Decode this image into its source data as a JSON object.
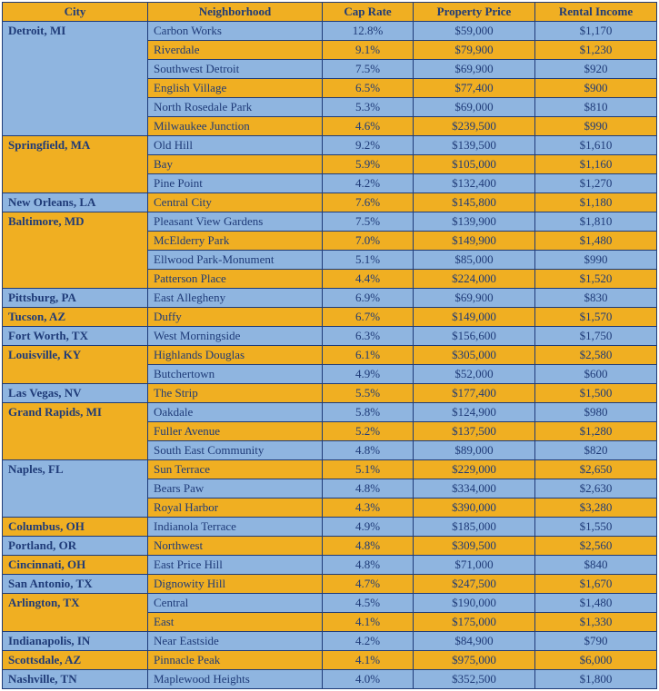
{
  "headers": {
    "city": "City",
    "neighborhood": "Neighborhood",
    "cap_rate": "Cap Rate",
    "price": "Property Price",
    "rent": "Rental Income"
  },
  "colors": {
    "blue_bg": "#8fb5e0",
    "yellow_bg": "#f0af22",
    "text": "#1f3b78",
    "border": "#1f3b78"
  },
  "groups": [
    {
      "city": "Detroit, MI",
      "city_color": "blue",
      "rows": [
        {
          "n": "Carbon Works",
          "cap": "12.8%",
          "price": "$59,000",
          "rent": "$1,170",
          "c": "blue"
        },
        {
          "n": "Riverdale",
          "cap": "9.1%",
          "price": "$79,900",
          "rent": "$1,230",
          "c": "yellow"
        },
        {
          "n": "Southwest Detroit",
          "cap": "7.5%",
          "price": "$69,900",
          "rent": "$920",
          "c": "blue"
        },
        {
          "n": "English Village",
          "cap": "6.5%",
          "price": "$77,400",
          "rent": "$900",
          "c": "yellow"
        },
        {
          "n": "North Rosedale Park",
          "cap": "5.3%",
          "price": "$69,000",
          "rent": "$810",
          "c": "blue"
        },
        {
          "n": "Milwaukee Junction",
          "cap": "4.6%",
          "price": "$239,500",
          "rent": "$990",
          "c": "yellow"
        }
      ]
    },
    {
      "city": "Springfield, MA",
      "city_color": "yellow",
      "rows": [
        {
          "n": "Old Hill",
          "cap": "9.2%",
          "price": "$139,500",
          "rent": "$1,610",
          "c": "blue"
        },
        {
          "n": "Bay",
          "cap": "5.9%",
          "price": "$105,000",
          "rent": "$1,160",
          "c": "yellow"
        },
        {
          "n": "Pine Point",
          "cap": "4.2%",
          "price": "$132,400",
          "rent": "$1,270",
          "c": "blue"
        }
      ]
    },
    {
      "city": "New Orleans, LA",
      "city_color": "blue",
      "rows": [
        {
          "n": "Central City",
          "cap": "7.6%",
          "price": "$145,800",
          "rent": "$1,180",
          "c": "yellow"
        }
      ]
    },
    {
      "city": "Baltimore, MD",
      "city_color": "yellow",
      "rows": [
        {
          "n": "Pleasant View Gardens",
          "cap": "7.5%",
          "price": "$139,900",
          "rent": "$1,810",
          "c": "blue"
        },
        {
          "n": "McElderry Park",
          "cap": "7.0%",
          "price": "$149,900",
          "rent": "$1,480",
          "c": "yellow"
        },
        {
          "n": "Ellwood Park-Monument",
          "cap": "5.1%",
          "price": "$85,000",
          "rent": "$990",
          "c": "blue"
        },
        {
          "n": "Patterson Place",
          "cap": "4.4%",
          "price": "$224,000",
          "rent": "$1,520",
          "c": "yellow"
        }
      ]
    },
    {
      "city": "Pittsburg, PA",
      "city_color": "blue",
      "rows": [
        {
          "n": "East Allegheny",
          "cap": "6.9%",
          "price": "$69,900",
          "rent": "$830",
          "c": "blue"
        }
      ]
    },
    {
      "city": "Tucson, AZ",
      "city_color": "yellow",
      "rows": [
        {
          "n": "Duffy",
          "cap": "6.7%",
          "price": "$149,000",
          "rent": "$1,570",
          "c": "yellow"
        }
      ]
    },
    {
      "city": "Fort Worth, TX",
      "city_color": "blue",
      "rows": [
        {
          "n": "West Morningside",
          "cap": "6.3%",
          "price": "$156,600",
          "rent": "$1,750",
          "c": "blue"
        }
      ]
    },
    {
      "city": "Louisville, KY",
      "city_color": "yellow",
      "rows": [
        {
          "n": "Highlands Douglas",
          "cap": "6.1%",
          "price": "$305,000",
          "rent": "$2,580",
          "c": "yellow"
        },
        {
          "n": "Butchertown",
          "cap": "4.9%",
          "price": "$52,000",
          "rent": "$600",
          "c": "blue"
        }
      ]
    },
    {
      "city": "Las Vegas, NV",
      "city_color": "blue",
      "rows": [
        {
          "n": "The Strip",
          "cap": "5.5%",
          "price": "$177,400",
          "rent": "$1,500",
          "c": "yellow"
        }
      ]
    },
    {
      "city": "Grand Rapids, MI",
      "city_color": "yellow",
      "rows": [
        {
          "n": "Oakdale",
          "cap": "5.8%",
          "price": "$124,900",
          "rent": "$980",
          "c": "blue"
        },
        {
          "n": "Fuller Avenue",
          "cap": "5.2%",
          "price": "$137,500",
          "rent": "$1,280",
          "c": "yellow"
        },
        {
          "n": "South East Community",
          "cap": "4.8%",
          "price": "$89,000",
          "rent": "$820",
          "c": "blue"
        }
      ]
    },
    {
      "city": "Naples, FL",
      "city_color": "blue",
      "rows": [
        {
          "n": "Sun Terrace",
          "cap": "5.1%",
          "price": "$229,000",
          "rent": "$2,650",
          "c": "yellow"
        },
        {
          "n": "Bears Paw",
          "cap": "4.8%",
          "price": "$334,000",
          "rent": "$2,630",
          "c": "blue"
        },
        {
          "n": "Royal Harbor",
          "cap": "4.3%",
          "price": "$390,000",
          "rent": "$3,280",
          "c": "yellow"
        }
      ]
    },
    {
      "city": "Columbus, OH",
      "city_color": "yellow",
      "rows": [
        {
          "n": "Indianola Terrace",
          "cap": "4.9%",
          "price": "$185,000",
          "rent": "$1,550",
          "c": "blue"
        }
      ]
    },
    {
      "city": "Portland, OR",
      "city_color": "blue",
      "rows": [
        {
          "n": "Northwest",
          "cap": "4.8%",
          "price": "$309,500",
          "rent": "$2,560",
          "c": "yellow"
        }
      ]
    },
    {
      "city": "Cincinnati, OH",
      "city_color": "yellow",
      "rows": [
        {
          "n": "East Price Hill",
          "cap": "4.8%",
          "price": "$71,000",
          "rent": "$840",
          "c": "blue"
        }
      ]
    },
    {
      "city": "San Antonio, TX",
      "city_color": "blue",
      "rows": [
        {
          "n": "Dignowity Hill",
          "cap": "4.7%",
          "price": "$247,500",
          "rent": "$1,670",
          "c": "yellow"
        }
      ]
    },
    {
      "city": "Arlington, TX",
      "city_color": "yellow",
      "rows": [
        {
          "n": "Central",
          "cap": "4.5%",
          "price": "$190,000",
          "rent": "$1,480",
          "c": "blue"
        },
        {
          "n": "East",
          "cap": "4.1%",
          "price": "$175,000",
          "rent": "$1,330",
          "c": "yellow"
        }
      ]
    },
    {
      "city": "Indianapolis, IN",
      "city_color": "blue",
      "rows": [
        {
          "n": "Near Eastside",
          "cap": "4.2%",
          "price": "$84,900",
          "rent": "$790",
          "c": "blue"
        }
      ]
    },
    {
      "city": "Scottsdale, AZ",
      "city_color": "yellow",
      "rows": [
        {
          "n": "Pinnacle Peak",
          "cap": "4.1%",
          "price": "$975,000",
          "rent": "$6,000",
          "c": "yellow"
        }
      ]
    },
    {
      "city": "Nashville, TN",
      "city_color": "blue",
      "rows": [
        {
          "n": "Maplewood Heights",
          "cap": "4.0%",
          "price": "$352,500",
          "rent": "$1,800",
          "c": "blue"
        }
      ]
    }
  ]
}
